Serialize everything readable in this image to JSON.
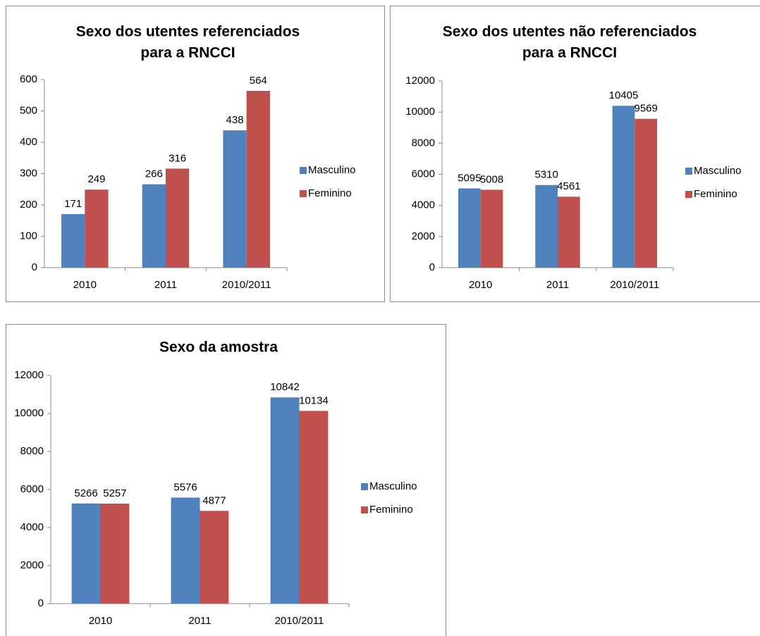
{
  "chart_data": [
    {
      "type": "bar",
      "title": [
        "Sexo dos utentes referenciados",
        "para a RNCCI"
      ],
      "categories": [
        "2010",
        "2011",
        "2010/2011"
      ],
      "series": [
        {
          "name": "Masculino",
          "color": "#4f81bd",
          "values": [
            171,
            266,
            438
          ]
        },
        {
          "name": "Feminino",
          "color": "#c0504d",
          "values": [
            249,
            316,
            564
          ]
        }
      ],
      "ylim": [
        0,
        600
      ],
      "yticks": [
        0,
        100,
        200,
        300,
        400,
        500,
        600
      ],
      "legend": "right"
    },
    {
      "type": "bar",
      "title": [
        "Sexo dos utentes não referenciados",
        "para a RNCCI"
      ],
      "categories": [
        "2010",
        "2011",
        "2010/2011"
      ],
      "series": [
        {
          "name": "Masculino",
          "color": "#4f81bd",
          "values": [
            5095,
            5310,
            10405
          ]
        },
        {
          "name": "Feminino",
          "color": "#c0504d",
          "values": [
            5008,
            4561,
            9569
          ]
        }
      ],
      "ylim": [
        0,
        12000
      ],
      "yticks": [
        0,
        2000,
        4000,
        6000,
        8000,
        10000,
        12000
      ],
      "legend": "right"
    },
    {
      "type": "bar",
      "title": [
        "Sexo da amostra"
      ],
      "categories": [
        "2010",
        "2011",
        "2010/2011"
      ],
      "series": [
        {
          "name": "Masculino",
          "color": "#4f81bd",
          "values": [
            5266,
            5576,
            10842
          ]
        },
        {
          "name": "Feminino",
          "color": "#c0504d",
          "values": [
            5257,
            4877,
            10134
          ]
        }
      ],
      "ylim": [
        0,
        12000
      ],
      "yticks": [
        0,
        2000,
        4000,
        6000,
        8000,
        10000,
        12000
      ],
      "legend": "right"
    }
  ]
}
